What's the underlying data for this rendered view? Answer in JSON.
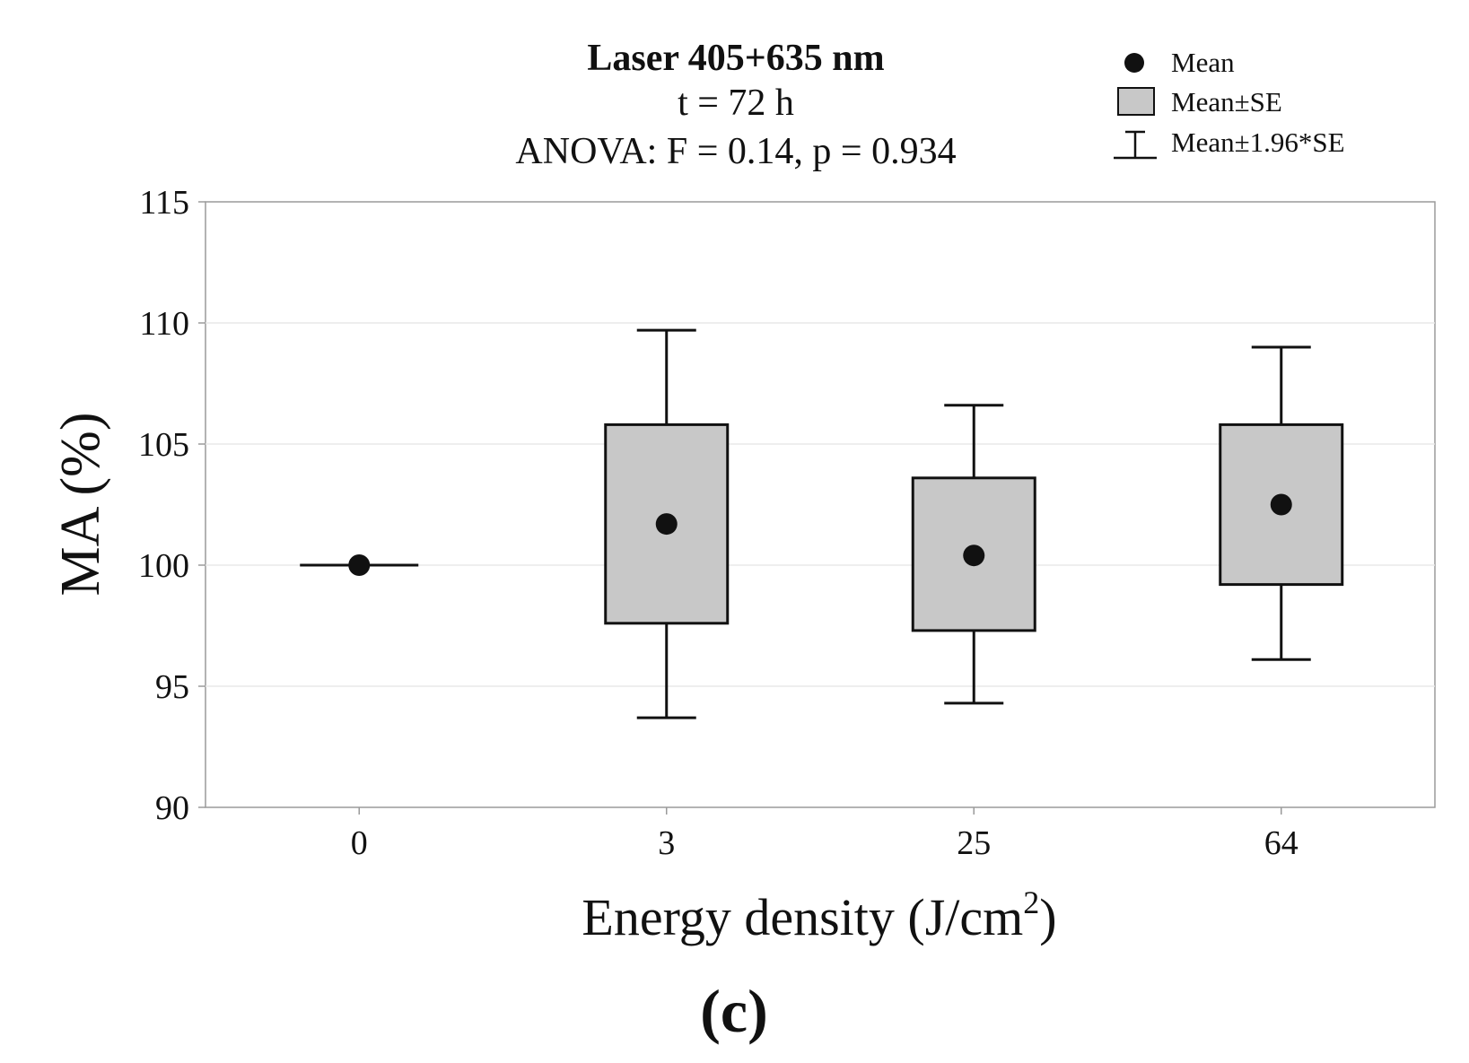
{
  "chart_data": {
    "type": "box",
    "title": "Laser 405+635 nm",
    "subtitle": "t = 72 h",
    "annotation": "ANOVA: F = 0.14, p = 0.934",
    "xlabel": "Energy density (J/cm",
    "xlabel_sup": "2",
    "xlabel_end": ")",
    "ylabel": "MA (%)",
    "ylim": [
      90,
      115
    ],
    "yticks": [
      "90",
      "95",
      "100",
      "105",
      "110",
      "115"
    ],
    "categories": [
      "0",
      "3",
      "25",
      "64"
    ],
    "series": [
      {
        "name": "Mean",
        "values": [
          100.0,
          101.7,
          100.4,
          102.5
        ]
      },
      {
        "name": "Mean±SE",
        "low": [
          100.0,
          97.6,
          97.3,
          99.2
        ],
        "high": [
          100.0,
          105.8,
          103.6,
          105.8
        ]
      },
      {
        "name": "Mean±1.96*SE",
        "low": [
          100.0,
          93.7,
          94.3,
          96.1
        ],
        "high": [
          100.0,
          109.7,
          106.6,
          109.0
        ]
      }
    ],
    "legend": [
      "Mean",
      "Mean±SE",
      "Mean±1.96*SE"
    ],
    "legend_position": "top-right",
    "grid": true
  },
  "panel_label": "(c)",
  "colors": {
    "box_fill": "#c8c8c8",
    "stroke": "#111111",
    "grid": "#e9e9e9",
    "axis": "#9a9a9a"
  }
}
